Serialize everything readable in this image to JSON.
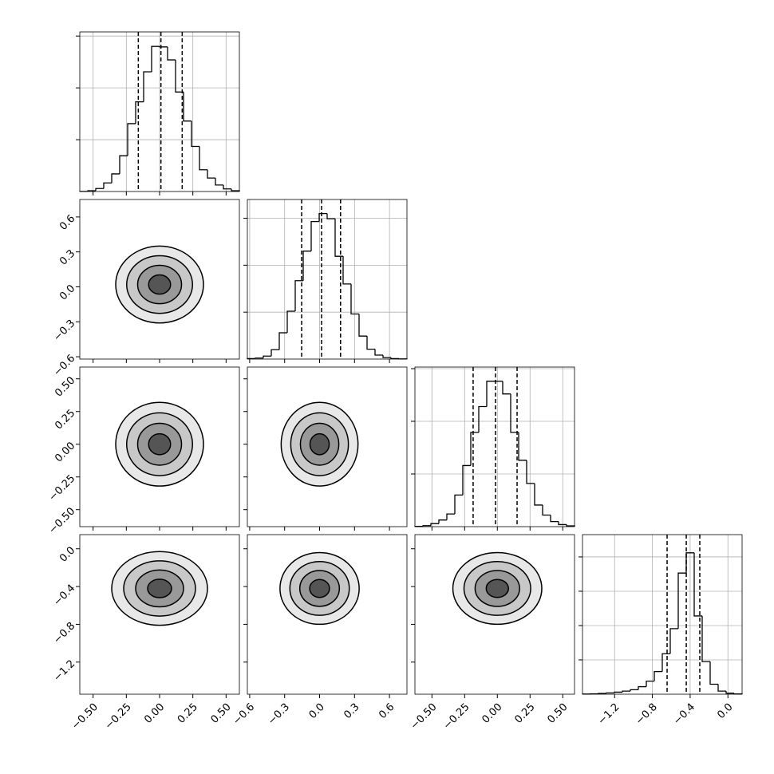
{
  "chart_data": {
    "type": "corner",
    "contour_levels": [
      0.5,
      1,
      1.5,
      2
    ],
    "variables": [
      {
        "lim": [
          -0.6,
          0.6
        ],
        "ticks": [
          {
            "value": -0.5,
            "label": "−0.50"
          },
          {
            "value": -0.25,
            "label": "−0.25"
          },
          {
            "value": 0,
            "label": "0.00"
          },
          {
            "value": 0.25,
            "label": "0.25"
          },
          {
            "value": 0.5,
            "label": "0.50"
          }
        ],
        "bins": [
          -0.6,
          -0.54,
          -0.48,
          -0.42,
          -0.36,
          -0.3,
          -0.24,
          -0.18,
          -0.12,
          -0.06,
          0,
          0.06,
          0.12,
          0.18,
          0.24,
          0.3,
          0.36,
          0.42,
          0.48,
          0.54,
          0.6
        ],
        "counts": [
          2,
          15,
          58,
          165,
          340,
          690,
          1310,
          1730,
          2310,
          2800,
          2790,
          2540,
          1920,
          1360,
          870,
          420,
          260,
          125,
          50,
          15
        ],
        "hist_ylim": [
          0,
          3080
        ],
        "hist_yticks": [
          1000,
          2000,
          3000
        ],
        "quantiles": [
          -0.16,
          0.01,
          0.17
        ]
      },
      {
        "lim": [
          -0.62,
          0.75
        ],
        "ticks": [
          {
            "value": -0.6,
            "label": "−0.6"
          },
          {
            "value": -0.3,
            "label": "−0.3"
          },
          {
            "value": 0,
            "label": "0.0"
          },
          0.3,
          0.6
        ],
        "bins": [
          -0.62,
          -0.5515,
          -0.483,
          -0.4145,
          -0.346,
          -0.2775,
          -0.209,
          -0.1405,
          -0.072,
          -0.0035,
          0.065,
          0.1335,
          0.202,
          0.2705,
          0.339,
          0.4075,
          0.476,
          0.5445,
          0.613,
          0.6815,
          0.75
        ],
        "counts": [
          11,
          21,
          64,
          200,
          560,
          1020,
          1670,
          2300,
          2930,
          3100,
          2990,
          2190,
          1600,
          960,
          490,
          210,
          85,
          32,
          11,
          3
        ],
        "hist_ylim": [
          0,
          3400
        ],
        "hist_yticks": [
          1000,
          2000,
          3000
        ],
        "quantiles": [
          -0.154,
          0.017,
          0.18
        ]
      },
      {
        "lim": [
          -0.63,
          0.59
        ],
        "ticks": [
          {
            "value": -0.5,
            "label": "−0.50"
          },
          {
            "value": -0.25,
            "label": "−0.25"
          },
          {
            "value": 0,
            "label": "0.00"
          },
          {
            "value": 0.25,
            "label": "0.25"
          },
          {
            "value": 0.5,
            "label": "0.50"
          }
        ],
        "bins": [
          -0.63,
          -0.569,
          -0.508,
          -0.447,
          -0.386,
          -0.325,
          -0.264,
          -0.203,
          -0.142,
          -0.081,
          -0.02,
          0.041,
          0.102,
          0.163,
          0.224,
          0.285,
          0.346,
          0.407,
          0.468,
          0.529,
          0.59
        ],
        "counts": [
          5,
          19,
          58,
          126,
          240,
          600,
          1160,
          1790,
          2280,
          2760,
          2760,
          2520,
          1790,
          1260,
          820,
          410,
          220,
          97,
          39,
          15
        ],
        "hist_ylim": [
          0,
          3030
        ],
        "hist_yticks": [
          1000,
          2000,
          3000
        ],
        "quantiles": [
          -0.185,
          -0.014,
          0.151
        ]
      },
      {
        "lim": [
          -1.54,
          0.15
        ],
        "ticks": [
          {
            "value": -1.2,
            "label": "−1.2"
          },
          {
            "value": -0.8,
            "label": "−0.8"
          },
          {
            "value": -0.4,
            "label": "−0.4"
          },
          {
            "value": 0,
            "label": "0.0"
          }
        ],
        "bins": [
          -1.54,
          -1.4555,
          -1.371,
          -1.2865,
          -1.202,
          -1.1175,
          -1.033,
          -0.9485,
          -0.864,
          -0.7795,
          -0.695,
          -0.6105,
          -0.526,
          -0.4415,
          -0.357,
          -0.2725,
          -0.188,
          -0.1035,
          -0.019,
          0.0655,
          0.15
        ],
        "counts": [
          4,
          12,
          22,
          37,
          60,
          90,
          130,
          220,
          380,
          660,
          1180,
          1910,
          3530,
          4120,
          2280,
          950,
          290,
          90,
          30,
          7
        ],
        "hist_ylim": [
          0,
          4650
        ],
        "hist_yticks": [
          1000,
          2000,
          3000,
          4000
        ],
        "quantiles": [
          -0.644,
          -0.441,
          -0.298
        ]
      }
    ],
    "pairs": [
      {
        "center": [
          0,
          0.02
        ],
        "sigma": [
          0.165,
          0.165
        ]
      },
      {
        "center": [
          0,
          0
        ],
        "sigma": [
          0.165,
          0.16
        ]
      },
      {
        "center": [
          0,
          0
        ],
        "sigma": [
          0.165,
          0.16
        ]
      },
      {
        "center": [
          0,
          -0.42
        ],
        "sigma": [
          0.18,
          0.195
        ]
      },
      {
        "center": [
          0,
          -0.42
        ],
        "sigma": [
          0.17,
          0.19
        ]
      },
      {
        "center": [
          0,
          -0.42
        ],
        "sigma": [
          0.17,
          0.19
        ]
      }
    ]
  }
}
